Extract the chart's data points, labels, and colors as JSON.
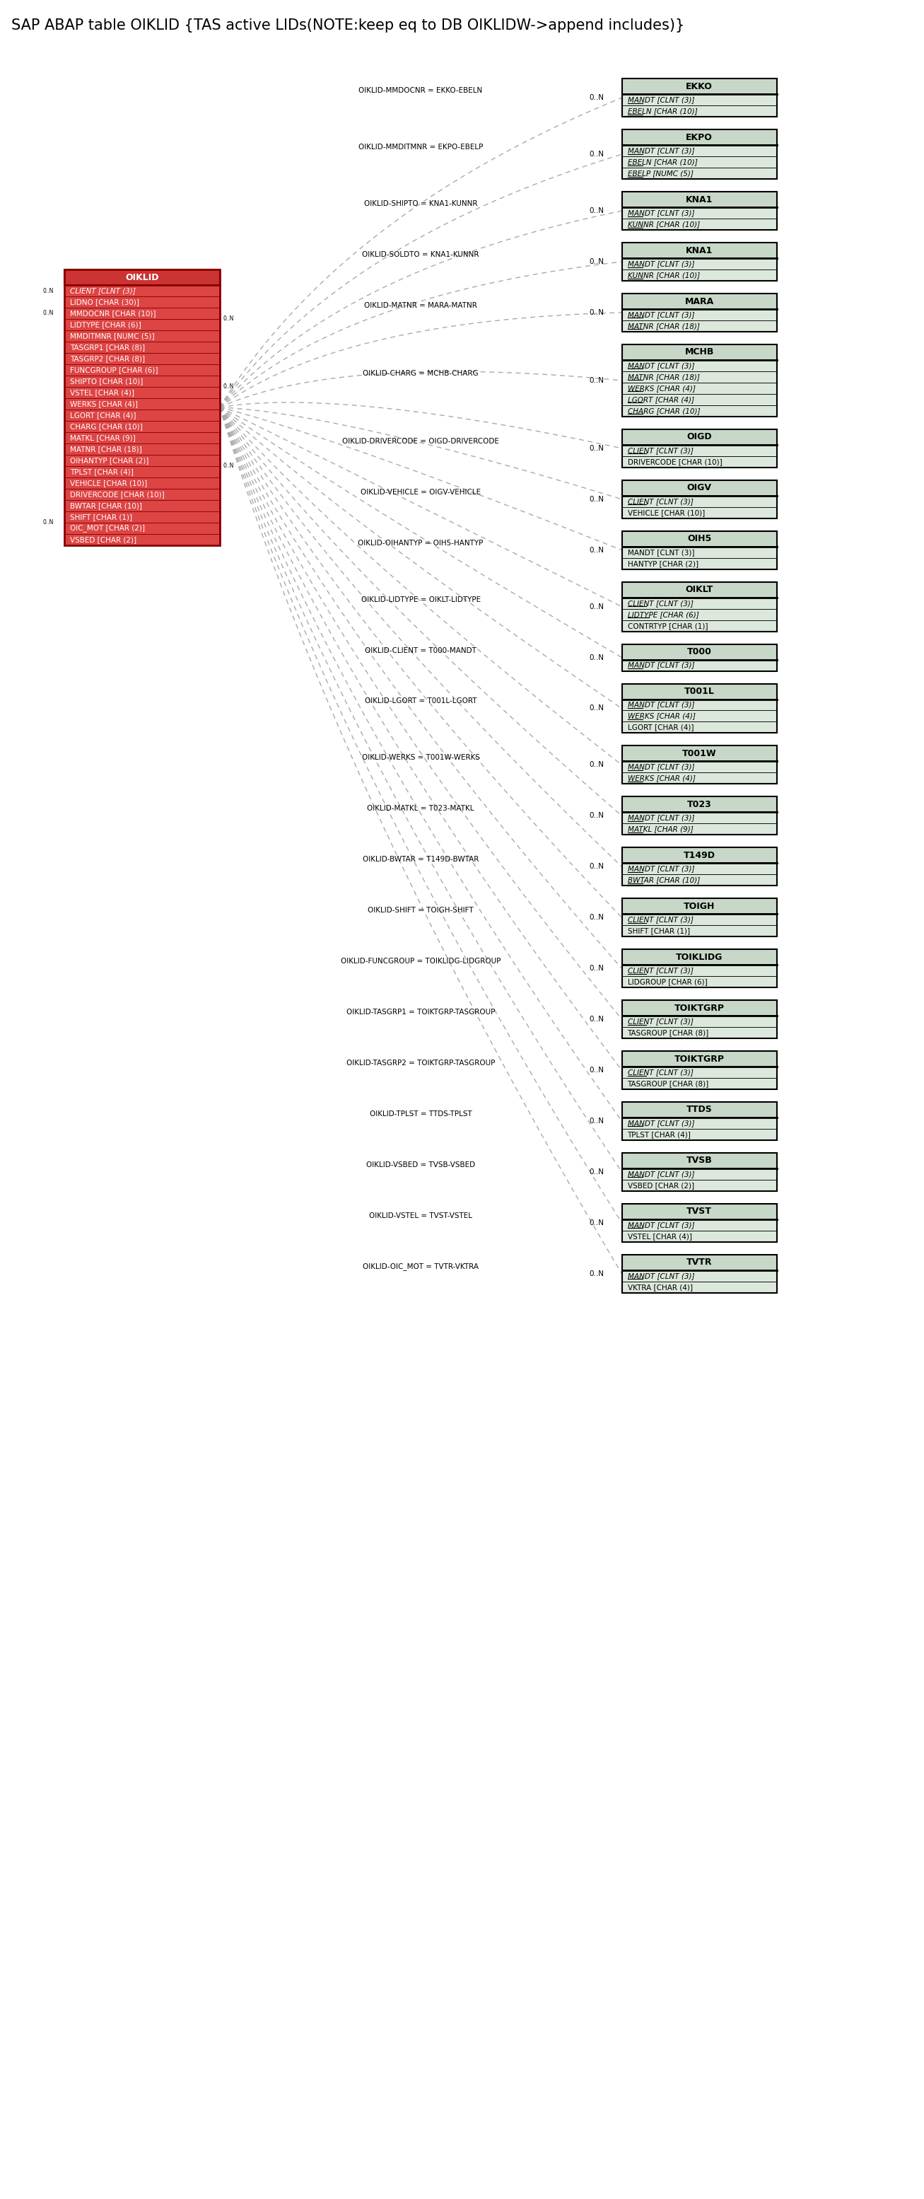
{
  "title": "SAP ABAP table OIKLID {TAS active LIDs(NOTE:keep eq to DB OIKLIDW->append includes)}",
  "title_fontsize": 15,
  "background_color": "#ffffff",
  "box_header_color": "#c8d8c8",
  "box_body_color": "#dce8dc",
  "box_border_color": "#000000",
  "center_table": {
    "name": "OIKLID",
    "header_color": "#cc3333",
    "text_color": "#ffffff",
    "border_color": "#880000",
    "fields": [
      {
        "name": "CLIENT",
        "type": "[CLNT (3)]",
        "key": true
      },
      {
        "name": "LIDNO",
        "type": "[CHAR (30)]",
        "key": false
      },
      {
        "name": "MMDOCNR",
        "type": "[CHAR (10)]",
        "key": false
      },
      {
        "name": "LIDTYPE",
        "type": "[CHAR (6)]",
        "key": false
      },
      {
        "name": "MMDITMNR",
        "type": "[NUMC (5)]",
        "key": false
      },
      {
        "name": "TASGRP1",
        "type": "[CHAR (8)]",
        "key": false
      },
      {
        "name": "TASGRP2",
        "type": "[CHAR (8)]",
        "key": false
      },
      {
        "name": "FUNCGROUP",
        "type": "[CHAR (6)]",
        "key": false
      },
      {
        "name": "SHIPTO",
        "type": "[CHAR (10)]",
        "key": false
      },
      {
        "name": "VSTEL",
        "type": "[CHAR (4)]",
        "key": false
      },
      {
        "name": "WERKS",
        "type": "[CHAR (4)]",
        "key": false
      },
      {
        "name": "LGORT",
        "type": "[CHAR (4)]",
        "key": false
      },
      {
        "name": "CHARG",
        "type": "[CHAR (10)]",
        "key": false
      },
      {
        "name": "MATKL",
        "type": "[CHAR (9)]",
        "key": false
      },
      {
        "name": "MATNR",
        "type": "[CHAR (18)]",
        "key": false
      },
      {
        "name": "OIHANTYP",
        "type": "[CHAR (2)]",
        "key": false
      },
      {
        "name": "TPLST",
        "type": "[CHAR (4)]",
        "key": false
      },
      {
        "name": "VEHICLE",
        "type": "[CHAR (10)]",
        "key": false
      },
      {
        "name": "DRIVERCODE",
        "type": "[CHAR (10)]",
        "key": false
      },
      {
        "name": "BWTAR",
        "type": "[CHAR (10)]",
        "key": false
      },
      {
        "name": "SHIFT",
        "type": "[CHAR (1)]",
        "key": false
      },
      {
        "name": "OIC_MOT",
        "type": "[CHAR (2)]",
        "key": false
      },
      {
        "name": "VSBED",
        "type": "[CHAR (2)]",
        "key": false
      }
    ]
  },
  "related_tables": [
    {
      "name": "EKKO",
      "fields": [
        {
          "name": "MANDT",
          "type": "[CLNT (3)]",
          "key": true
        },
        {
          "name": "EBELN",
          "type": "[CHAR (10)]",
          "key": true
        }
      ],
      "relation_label": "OIKLID-MMDOCNR = EKKO-EBELN",
      "cardinality": "0..N"
    },
    {
      "name": "EKPO",
      "fields": [
        {
          "name": "MANDT",
          "type": "[CLNT (3)]",
          "key": true
        },
        {
          "name": "EBELN",
          "type": "[CHAR (10)]",
          "key": true
        },
        {
          "name": "EBELP",
          "type": "[NUMC (5)]",
          "key": true
        }
      ],
      "relation_label": "OIKLID-MMDITMNR = EKPO-EBELP",
      "cardinality": "0..N"
    },
    {
      "name": "KNA1",
      "fields": [
        {
          "name": "MANDT",
          "type": "[CLNT (3)]",
          "key": true
        },
        {
          "name": "KUNNR",
          "type": "[CHAR (10)]",
          "key": true
        }
      ],
      "relation_label": "OIKLID-SHIPTO = KNA1-KUNNR",
      "cardinality": "0..N"
    },
    {
      "name": "KNA1",
      "display_name": "KNA1",
      "fields": [
        {
          "name": "MANDT",
          "type": "[CLNT (3)]",
          "key": true
        },
        {
          "name": "KUNNR",
          "type": "[CHAR (10)]",
          "key": true
        }
      ],
      "relation_label": "OIKLID-SOLDTO = KNA1-KUNNR",
      "cardinality": "0..N"
    },
    {
      "name": "MARA",
      "fields": [
        {
          "name": "MANDT",
          "type": "[CLNT (3)]",
          "key": true
        },
        {
          "name": "MATNR",
          "type": "[CHAR (18)]",
          "key": true
        }
      ],
      "relation_label": "OIKLID-MATNR = MARA-MATNR",
      "cardinality": "0..N"
    },
    {
      "name": "MCHB",
      "fields": [
        {
          "name": "MANDT",
          "type": "[CLNT (3)]",
          "key": true
        },
        {
          "name": "MATNR",
          "type": "[CHAR (18)]",
          "key": true
        },
        {
          "name": "WERKS",
          "type": "[CHAR (4)]",
          "key": true
        },
        {
          "name": "LGORT",
          "type": "[CHAR (4)]",
          "key": true
        },
        {
          "name": "CHARG",
          "type": "[CHAR (10)]",
          "key": true
        }
      ],
      "relation_label": "OIKLID-CHARG = MCHB-CHARG",
      "cardinality": "0..N"
    },
    {
      "name": "OIGD",
      "fields": [
        {
          "name": "CLIENT",
          "type": "[CLNT (3)]",
          "key": true
        },
        {
          "name": "DRIVERCODE",
          "type": "[CHAR (10)]",
          "key": false
        }
      ],
      "relation_label": "OIKLID-DRIVERCODE = OIGD-DRIVERCODE",
      "cardinality": "0..N"
    },
    {
      "name": "OIGV",
      "fields": [
        {
          "name": "CLIENT",
          "type": "[CLNT (3)]",
          "key": true
        },
        {
          "name": "VEHICLE",
          "type": "[CHAR (10)]",
          "key": false
        }
      ],
      "relation_label": "OIKLID-VEHICLE = OIGV-VEHICLE",
      "cardinality": "0..N"
    },
    {
      "name": "OIH5",
      "fields": [
        {
          "name": "MANDT",
          "type": "[CLNT (3)]",
          "key": false
        },
        {
          "name": "HANTYP",
          "type": "[CHAR (2)]",
          "key": false
        }
      ],
      "relation_label": "OIKLID-OIHANTYP = OIH5-HANTYP",
      "cardinality": "0..N"
    },
    {
      "name": "OIKLT",
      "fields": [
        {
          "name": "CLIENT",
          "type": "[CLNT (3)]",
          "key": true
        },
        {
          "name": "LIDTYPE",
          "type": "[CHAR (6)]",
          "key": true
        },
        {
          "name": "CONTRTYP",
          "type": "[CHAR (1)]",
          "key": false
        }
      ],
      "relation_label": "OIKLID-LIDTYPE = OIKLT-LIDTYPE",
      "cardinality": "0..N"
    },
    {
      "name": "T000",
      "fields": [
        {
          "name": "MANDT",
          "type": "[CLNT (3)]",
          "key": true
        }
      ],
      "relation_label": "OIKLID-CLIENT = T000-MANDT",
      "cardinality": "0..N"
    },
    {
      "name": "T001L",
      "fields": [
        {
          "name": "MANDT",
          "type": "[CLNT (3)]",
          "key": true
        },
        {
          "name": "WERKS",
          "type": "[CHAR (4)]",
          "key": true
        },
        {
          "name": "LGORT",
          "type": "[CHAR (4)]",
          "key": false
        }
      ],
      "relation_label": "OIKLID-LGORT = T001L-LGORT",
      "cardinality": "0..N",
      "extra_label": "OIKLID-WERKS = T001W-WERKS"
    },
    {
      "name": "T001W",
      "fields": [
        {
          "name": "MANDT",
          "type": "[CLNT (3)]",
          "key": true
        },
        {
          "name": "WERKS",
          "type": "[CHAR (4)]",
          "key": true
        }
      ],
      "relation_label": "OIKLID-WERKS = T001W-WERKS",
      "cardinality": "0..N"
    },
    {
      "name": "T023",
      "fields": [
        {
          "name": "MANDT",
          "type": "[CLNT (3)]",
          "key": true
        },
        {
          "name": "MATKL",
          "type": "[CHAR (9)]",
          "key": true
        }
      ],
      "relation_label": "OIKLID-MATKL = T023-MATKL",
      "cardinality": "0..N"
    },
    {
      "name": "T149D",
      "fields": [
        {
          "name": "MANDT",
          "type": "[CLNT (3)]",
          "key": true
        },
        {
          "name": "BWTAR",
          "type": "[CHAR (10)]",
          "key": true
        }
      ],
      "relation_label": "OIKLID-BWTAR = T149D-BWTAR",
      "cardinality": "0..N"
    },
    {
      "name": "TOIGH",
      "fields": [
        {
          "name": "CLIENT",
          "type": "[CLNT (3)]",
          "key": true
        },
        {
          "name": "SHIFT",
          "type": "[CHAR (1)]",
          "key": false
        }
      ],
      "relation_label": "OIKLID-SHIFT = TOIGH-SHIFT",
      "cardinality": "0..N"
    },
    {
      "name": "TOIKLIDG",
      "fields": [
        {
          "name": "CLIENT",
          "type": "[CLNT (3)]",
          "key": true
        },
        {
          "name": "LIDGROUP",
          "type": "[CHAR (6)]",
          "key": false
        }
      ],
      "relation_label": "OIKLID-FUNCGROUP = TOIKLIDG-LIDGROUP",
      "cardinality": "0..N"
    },
    {
      "name": "TOIKTGRP",
      "fields": [
        {
          "name": "CLIENT",
          "type": "[CLNT (3)]",
          "key": true
        },
        {
          "name": "TASGROUP",
          "type": "[CHAR (8)]",
          "key": false
        }
      ],
      "relation_label": "OIKLID-TASGRP1 = TOIKTGRP-TASGROUP",
      "cardinality": "0..N"
    },
    {
      "name": "TOIKTGRP",
      "display_name": "TOIKTGRP",
      "fields": [
        {
          "name": "CLIENT",
          "type": "[CLNT (3)]",
          "key": true
        },
        {
          "name": "TASGROUP",
          "type": "[CHAR (8)]",
          "key": false
        }
      ],
      "relation_label": "OIKLID-TASGRP2 = TOIKTGRP-TASGROUP",
      "cardinality": "0..N"
    },
    {
      "name": "TTDS",
      "fields": [
        {
          "name": "MANDT",
          "type": "[CLNT (3)]",
          "key": true
        },
        {
          "name": "TPLST",
          "type": "[CHAR (4)]",
          "key": false
        }
      ],
      "relation_label": "OIKLID-TPLST = TTDS-TPLST",
      "cardinality": "0..N"
    },
    {
      "name": "TVSB",
      "fields": [
        {
          "name": "MANDT",
          "type": "[CLNT (3)]",
          "key": true
        },
        {
          "name": "VSBED",
          "type": "[CHAR (2)]",
          "key": false
        }
      ],
      "relation_label": "OIKLID-VSBED = TVSB-VSBED",
      "cardinality": "0..N"
    },
    {
      "name": "TVST",
      "fields": [
        {
          "name": "MANDT",
          "type": "[CLNT (3)]",
          "key": true
        },
        {
          "name": "VSTEL",
          "type": "[CHAR (4)]",
          "key": false
        }
      ],
      "relation_label": "OIKLID-VSTEL = TVST-VSTEL",
      "cardinality": "0..N"
    },
    {
      "name": "TVTR",
      "fields": [
        {
          "name": "MANDT",
          "type": "[CLNT (3)]",
          "key": true
        },
        {
          "name": "VKTRA",
          "type": "[CHAR (4)]",
          "key": false
        }
      ],
      "relation_label": "OIKLID-OIC_MOT = TVTR-VKTRA",
      "cardinality": "0..N"
    }
  ]
}
